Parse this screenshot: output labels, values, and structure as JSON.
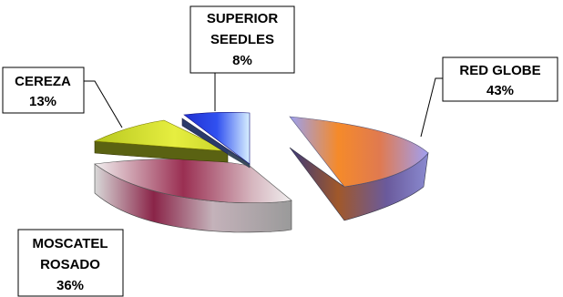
{
  "chart_data": {
    "type": "pie",
    "style": "3d-exploded",
    "slices": [
      {
        "name": "RED GLOBE",
        "value": 43,
        "label": "43%",
        "color": "#f39a3a",
        "side_color": "#6b5a9a"
      },
      {
        "name": "MOSCATEL ROSADO",
        "value": 36,
        "label": "36%",
        "color": "#b0485e",
        "side_color": "#a8a8a8"
      },
      {
        "name": "CEREZA",
        "value": 13,
        "label": "13%",
        "color": "#ccd830",
        "side_color": "#505810"
      },
      {
        "name": "SUPERIOR SEEDLES",
        "value": 8,
        "label": "8%",
        "color": "#2844e0",
        "side_color": "#3a4a7a"
      }
    ]
  },
  "labels": {
    "red_globe": {
      "line1": "RED GLOBE",
      "line2": "43%"
    },
    "moscatel": {
      "line1": "MOSCATEL",
      "line2": "ROSADO",
      "line3": "36%"
    },
    "cereza": {
      "line1": "CEREZA",
      "line2": "13%"
    },
    "superior": {
      "line1": "SUPERIOR",
      "line2": "SEEDLES",
      "line3": "8%"
    }
  }
}
